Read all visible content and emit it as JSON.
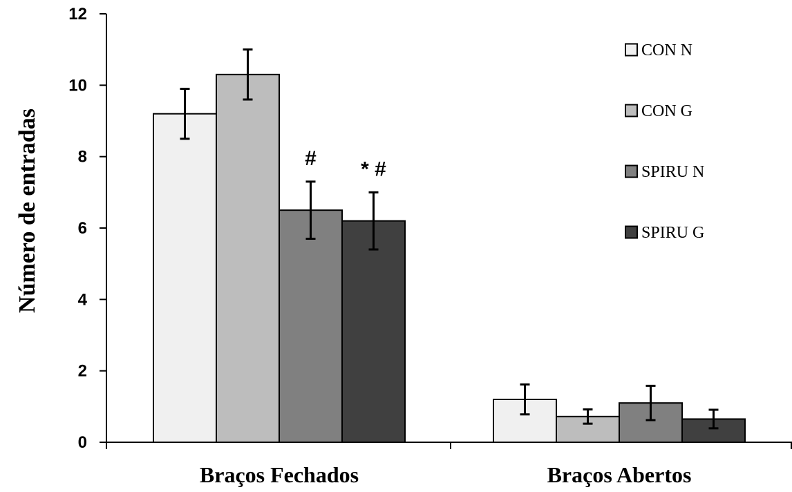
{
  "chart_data": {
    "type": "bar",
    "title": "",
    "xlabel": "",
    "ylabel": "Número de entradas",
    "ylim": [
      0,
      12
    ],
    "yticks": [
      0,
      2,
      4,
      6,
      8,
      10,
      12
    ],
    "categories": [
      "Braços Fechados",
      "Braços Abertos"
    ],
    "grid": false,
    "legend_position": "top-right",
    "series": [
      {
        "name": "CON N",
        "color": "#f0f0f0",
        "values": [
          9.2,
          1.2
        ],
        "errors": [
          0.7,
          0.42
        ]
      },
      {
        "name": "CON G",
        "color": "#bdbdbd",
        "values": [
          10.3,
          0.72
        ],
        "errors": [
          0.7,
          0.2
        ]
      },
      {
        "name": "SPIRU N",
        "color": "#808080",
        "values": [
          6.5,
          1.1
        ],
        "errors": [
          0.8,
          0.48
        ]
      },
      {
        "name": "SPIRU G",
        "color": "#404040",
        "values": [
          6.2,
          0.65
        ],
        "errors": [
          0.8,
          0.26
        ]
      }
    ],
    "annotations": [
      {
        "text": "#",
        "category": 0,
        "series": 2
      },
      {
        "text": "* #",
        "category": 0,
        "series": 3
      }
    ]
  }
}
